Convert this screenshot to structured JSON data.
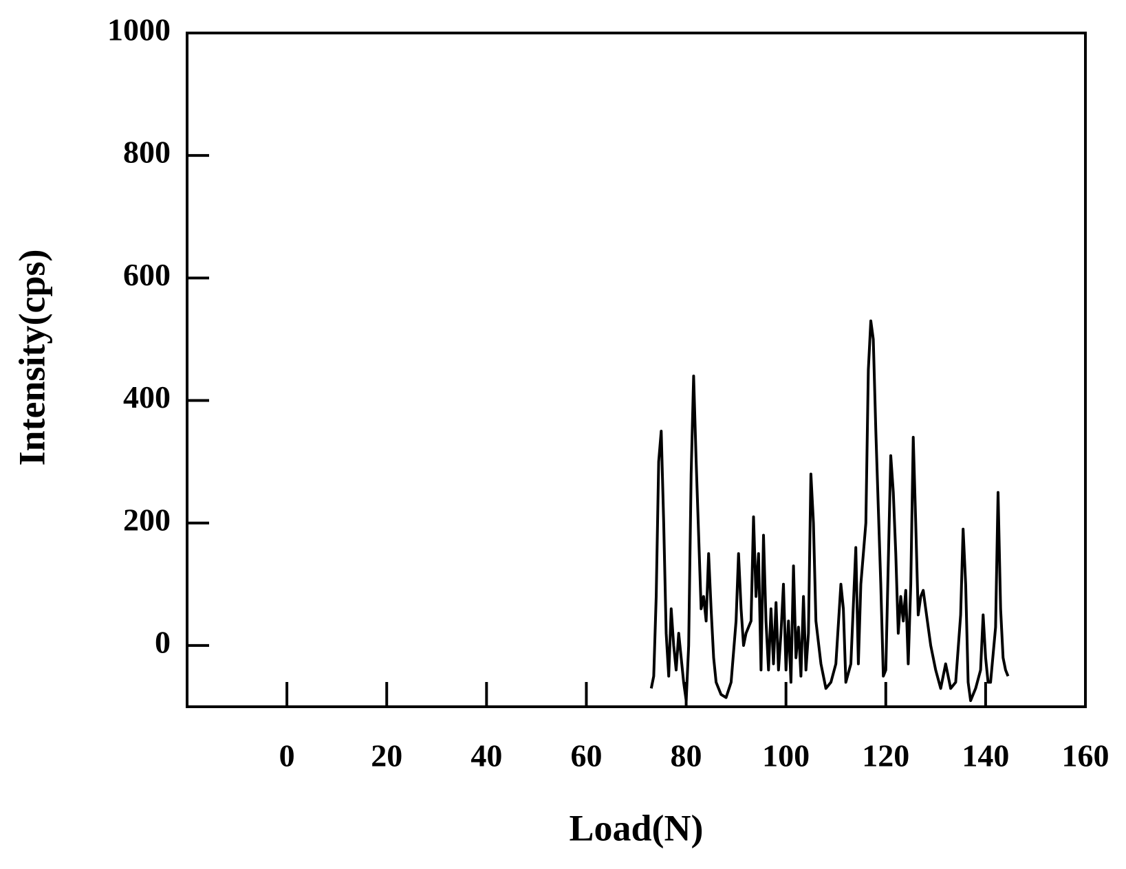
{
  "chart_data": {
    "type": "line",
    "x_label": "Load(N)",
    "y_label": "Intensity(cps)",
    "x": [
      73,
      73.5,
      74,
      74.5,
      75,
      75.5,
      76,
      76.5,
      77,
      77.5,
      78,
      78.5,
      79,
      79.5,
      80,
      80.5,
      81,
      81.5,
      82,
      82.5,
      83,
      83.5,
      84,
      84.5,
      85,
      85.5,
      86,
      87,
      88,
      89,
      90,
      90.5,
      91,
      91.5,
      92,
      93,
      93.5,
      94,
      94.5,
      95,
      95.5,
      96,
      96.5,
      97,
      97.5,
      98,
      98.5,
      99,
      99.5,
      100,
      100.5,
      101,
      101.5,
      102,
      102.5,
      103,
      103.5,
      104,
      104.5,
      105,
      105.5,
      106,
      107,
      108,
      109,
      110,
      111,
      111.5,
      112,
      113,
      114,
      114.5,
      115,
      116,
      116.5,
      117,
      117.5,
      118,
      119,
      119.5,
      120,
      121,
      121.5,
      122,
      122.5,
      123,
      123.5,
      124,
      124.5,
      125,
      125.5,
      126,
      126.5,
      127,
      127.5,
      128,
      129,
      130,
      131,
      132,
      133,
      134,
      135,
      135.5,
      136,
      136.5,
      137,
      138,
      139,
      139.5,
      140,
      140.5,
      141,
      142,
      142.5,
      143,
      143.5,
      144,
      144.5
    ],
    "series": [
      {
        "name": "Intensity",
        "color": "#000000",
        "values": [
          -70,
          -50,
          80,
          300,
          350,
          200,
          20,
          -50,
          60,
          0,
          -40,
          20,
          -20,
          -60,
          -90,
          0,
          280,
          440,
          300,
          180,
          60,
          80,
          40,
          150,
          60,
          -20,
          -60,
          -80,
          -85,
          -60,
          40,
          150,
          60,
          0,
          20,
          40,
          210,
          80,
          150,
          -40,
          180,
          40,
          -40,
          60,
          -30,
          70,
          -40,
          20,
          100,
          -40,
          40,
          -60,
          130,
          -20,
          30,
          -50,
          80,
          -40,
          20,
          280,
          200,
          40,
          -30,
          -70,
          -60,
          -30,
          100,
          60,
          -60,
          -30,
          160,
          -30,
          100,
          200,
          450,
          530,
          500,
          350,
          100,
          -50,
          -40,
          310,
          250,
          150,
          20,
          80,
          40,
          90,
          -30,
          100,
          340,
          200,
          50,
          80,
          90,
          60,
          0,
          -40,
          -70,
          -30,
          -70,
          -60,
          50,
          190,
          100,
          -60,
          -90,
          -70,
          -40,
          50,
          -20,
          -60,
          -60,
          30,
          250,
          60,
          -20,
          -40,
          -50
        ]
      }
    ],
    "xlim": [
      -20,
      160
    ],
    "xticks": [
      0,
      20,
      40,
      60,
      80,
      100,
      120,
      140,
      160
    ],
    "ylim": [
      -100,
      1000
    ],
    "yticks": [
      0,
      200,
      400,
      600,
      800,
      1000
    ]
  }
}
